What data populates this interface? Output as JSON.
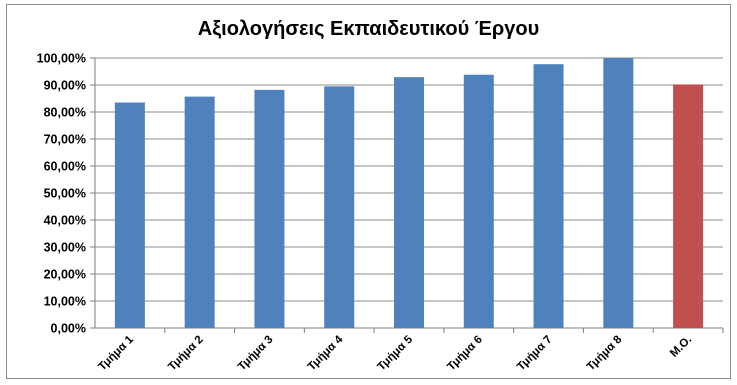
{
  "chart_data": {
    "type": "bar",
    "title": "Αξιολογήσεις Εκπαιδευτικού Έργου",
    "categories": [
      "Τμήμα 1",
      "Τμήμα 2",
      "Τμήμα 3",
      "Τμήμα 4",
      "Τμήμα 5",
      "Τμήμα 6",
      "Τμήμα 7",
      "Τμήμα 8",
      "Μ.Ο."
    ],
    "values": [
      83.5,
      85.7,
      88.2,
      89.5,
      92.9,
      93.8,
      97.7,
      100.0,
      90.2
    ],
    "ylim": [
      0,
      100
    ],
    "yticks": [
      0,
      10,
      20,
      30,
      40,
      50,
      60,
      70,
      80,
      90,
      100
    ],
    "ytick_labels": [
      "0,00%",
      "10,00%",
      "20,00%",
      "30,00%",
      "40,00%",
      "50,00%",
      "60,00%",
      "70,00%",
      "80,00%",
      "90,00%",
      "100,00%"
    ],
    "grid": true,
    "bar_colors": [
      "#4f81bd",
      "#4f81bd",
      "#4f81bd",
      "#4f81bd",
      "#4f81bd",
      "#4f81bd",
      "#4f81bd",
      "#4f81bd",
      "#c0504d"
    ],
    "gridline_color": "#8c8c8c",
    "axis_color": "#7f7f7f"
  }
}
